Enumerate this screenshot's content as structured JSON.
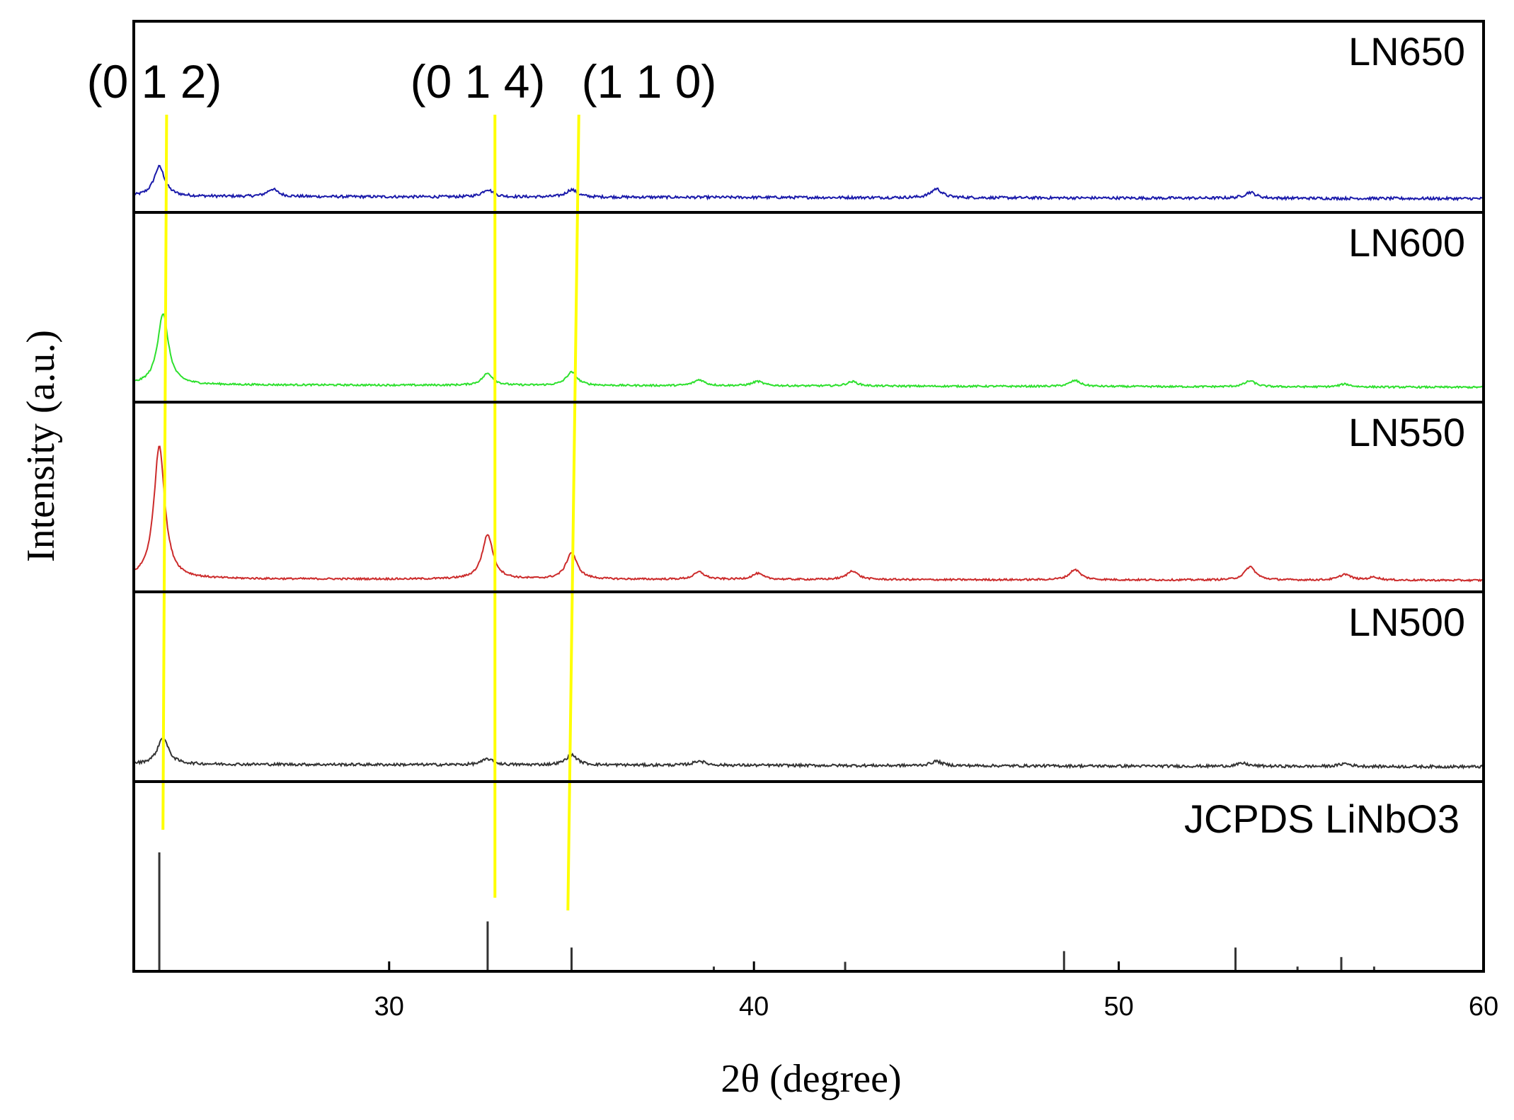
{
  "chart_data": {
    "type": "line",
    "title": "",
    "xlabel": "2θ (degree)",
    "ylabel": "Intensity (a.u.)",
    "xlim": [
      23,
      60
    ],
    "x_ticks": [
      30,
      40,
      50,
      60
    ],
    "x_tick_labels": [
      "30",
      "40",
      "50",
      "60"
    ],
    "panels": [
      {
        "name": "LN650",
        "color": "#1a1aaa",
        "baseline": 0.06,
        "noise": 0.018,
        "peaks": [
          [
            23.7,
            0.2
          ],
          [
            26.8,
            0.05
          ],
          [
            32.7,
            0.05
          ],
          [
            35.0,
            0.05
          ],
          [
            45.0,
            0.06
          ],
          [
            53.6,
            0.04
          ]
        ]
      },
      {
        "name": "LN600",
        "color": "#2ee02e",
        "baseline": 0.07,
        "noise": 0.012,
        "peaks": [
          [
            23.8,
            0.48
          ],
          [
            32.7,
            0.08
          ],
          [
            35.0,
            0.09
          ],
          [
            38.5,
            0.04
          ],
          [
            40.1,
            0.03
          ],
          [
            42.7,
            0.03
          ],
          [
            48.8,
            0.04
          ],
          [
            53.6,
            0.04
          ],
          [
            56.2,
            0.02
          ]
        ]
      },
      {
        "name": "LN550",
        "color": "#cc2b2b",
        "baseline": 0.04,
        "noise": 0.012,
        "peaks": [
          [
            23.7,
            0.9
          ],
          [
            32.7,
            0.3
          ],
          [
            35.0,
            0.18
          ],
          [
            38.5,
            0.05
          ],
          [
            40.1,
            0.04
          ],
          [
            42.7,
            0.06
          ],
          [
            48.8,
            0.07
          ],
          [
            53.6,
            0.09
          ],
          [
            56.2,
            0.04
          ],
          [
            57.0,
            0.02
          ]
        ]
      },
      {
        "name": "LN500",
        "color": "#333333",
        "baseline": 0.07,
        "noise": 0.018,
        "peaks": [
          [
            23.8,
            0.18
          ],
          [
            32.7,
            0.04
          ],
          [
            35.0,
            0.07
          ],
          [
            38.5,
            0.03
          ],
          [
            45.0,
            0.03
          ],
          [
            53.4,
            0.02
          ],
          [
            56.2,
            0.02
          ]
        ]
      }
    ],
    "reference": {
      "name": "JCPDS LiNbO3",
      "color": "#333333",
      "lines": [
        [
          23.7,
          1.0
        ],
        [
          32.7,
          0.42
        ],
        [
          35.0,
          0.2
        ],
        [
          38.9,
          0.04
        ],
        [
          42.5,
          0.08
        ],
        [
          48.5,
          0.17
        ],
        [
          53.2,
          0.2
        ],
        [
          54.9,
          0.04
        ],
        [
          56.1,
          0.12
        ],
        [
          57.0,
          0.04
        ]
      ]
    },
    "annotations": [
      {
        "label": "(0 1 2)",
        "x_top": 23.9,
        "x_bottom": 23.8
      },
      {
        "label": "(0 1 4)",
        "x_top": 32.9,
        "x_bottom": 32.9
      },
      {
        "label": "(1 1 0)",
        "x_top": 35.2,
        "x_bottom": 34.9
      }
    ],
    "annotation_color": "#ffff00"
  }
}
